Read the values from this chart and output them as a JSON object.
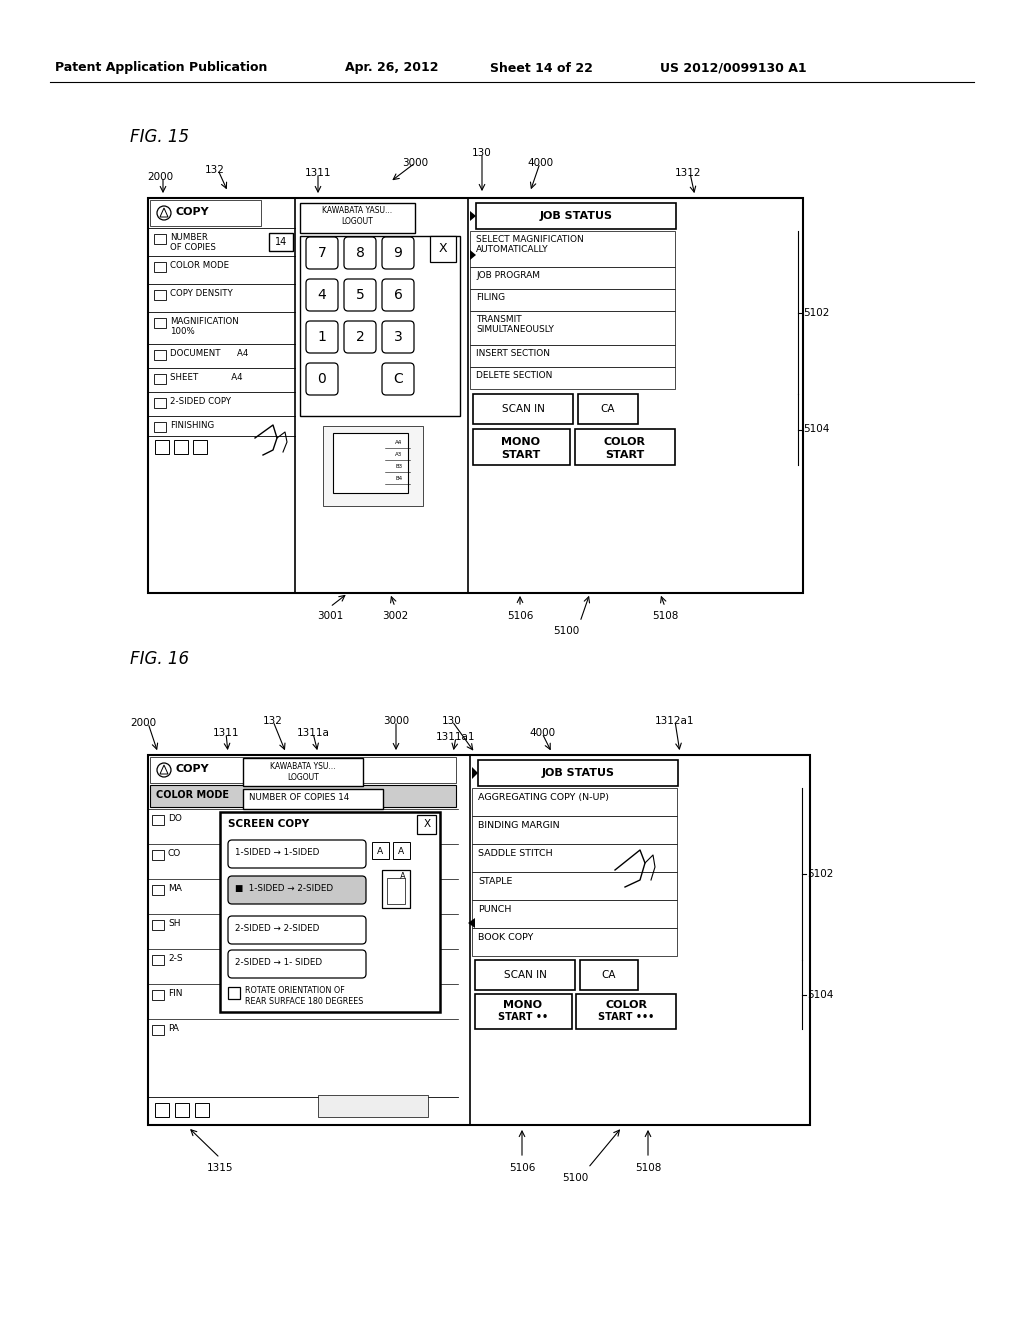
{
  "bg_color": "#ffffff",
  "header_text": "Patent Application Publication",
  "header_date": "Apr. 26, 2012",
  "header_sheet": "Sheet 14 of 22",
  "header_patent": "US 2012/0099130 A1",
  "fig15_title": "FIG. 15",
  "fig16_title": "FIG. 16"
}
